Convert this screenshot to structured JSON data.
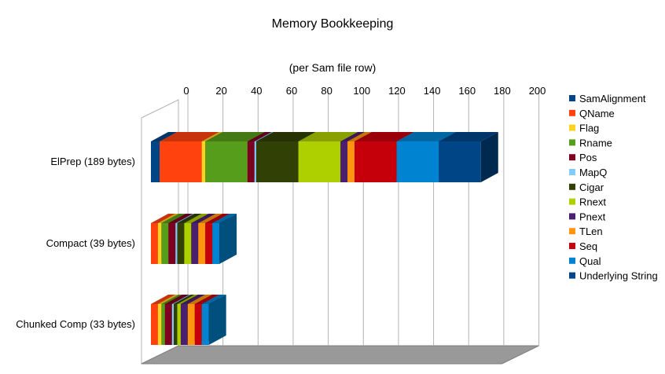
{
  "chart_data": {
    "type": "bar",
    "orientation": "horizontal",
    "stacked": true,
    "three_d": true,
    "title": "Memory Bookkeeping",
    "subtitle": "(per Sam file row)",
    "xlabel": "",
    "ylabel": "",
    "xlim": [
      0,
      200
    ],
    "xticks": [
      "0",
      "20",
      "40",
      "60",
      "80",
      "100",
      "120",
      "140",
      "160",
      "180",
      "200"
    ],
    "grid": true,
    "legend_position": "right",
    "categories": [
      "ElPrep (189 bytes)",
      "Compact (39 bytes)",
      "Chunked Comp (33 bytes)"
    ],
    "series": [
      {
        "name": "SamAlignment",
        "color": "#004586",
        "values": [
          5,
          0,
          0
        ]
      },
      {
        "name": "QName",
        "color": "#ff420e",
        "values": [
          24,
          4,
          4
        ]
      },
      {
        "name": "Flag",
        "color": "#ffd320",
        "values": [
          2,
          2,
          2
        ]
      },
      {
        "name": "Rname",
        "color": "#579d1c",
        "values": [
          24,
          4,
          2
        ]
      },
      {
        "name": "Pos",
        "color": "#7e0021",
        "values": [
          4,
          4,
          4
        ]
      },
      {
        "name": "MapQ",
        "color": "#83caff",
        "values": [
          1,
          1,
          1
        ]
      },
      {
        "name": "Cigar",
        "color": "#314004",
        "values": [
          24,
          4,
          2
        ]
      },
      {
        "name": "Rnext",
        "color": "#aecf00",
        "values": [
          24,
          4,
          2
        ]
      },
      {
        "name": "Pnext",
        "color": "#4b1f6f",
        "values": [
          4,
          4,
          4
        ]
      },
      {
        "name": "TLen",
        "color": "#ff950e",
        "values": [
          4,
          4,
          4
        ]
      },
      {
        "name": "Seq",
        "color": "#c5000b",
        "values": [
          24,
          4,
          4
        ]
      },
      {
        "name": "Qual",
        "color": "#0084d1",
        "values": [
          24,
          4,
          4
        ]
      },
      {
        "name": "Underlying String",
        "color": "#004586",
        "values": [
          24,
          0,
          0
        ]
      }
    ]
  }
}
